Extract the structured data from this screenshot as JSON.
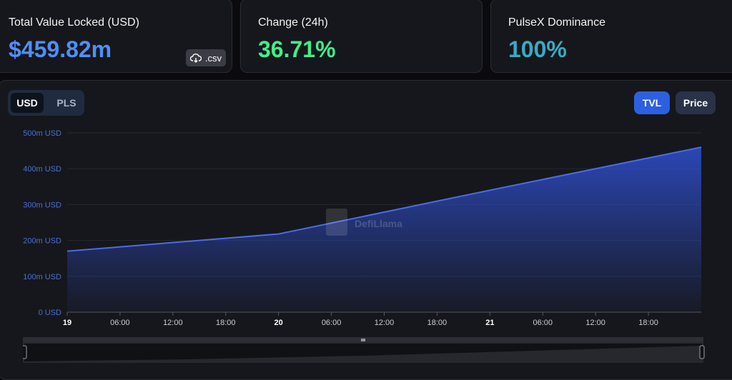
{
  "cards": {
    "tvl": {
      "label": "Total Value Locked (USD)",
      "value": "$459.82m",
      "value_color": "#4f8ff6",
      "csv_label": ".csv",
      "csv_icon": "cloud-download-icon"
    },
    "change": {
      "label": "Change (24h)",
      "value": "36.71%",
      "value_color": "#3ef08a"
    },
    "dominance": {
      "label": "PulseX Dominance",
      "value": "100%",
      "value_color": "#3aaac4"
    }
  },
  "controls": {
    "currency": {
      "options": [
        "USD",
        "PLS"
      ],
      "selected": "USD"
    },
    "views": [
      {
        "label": "TVL",
        "active": true
      },
      {
        "label": "Price",
        "active": false
      }
    ]
  },
  "watermark": "DefiLlama",
  "chart_data": {
    "type": "area",
    "series": [
      {
        "x": [
          0,
          24,
          48,
          72
        ],
        "values": [
          170,
          218,
          340,
          460
        ]
      }
    ],
    "x_ticks": [
      {
        "x": 0,
        "label": "19",
        "bold": true
      },
      {
        "x": 6,
        "label": "06:00"
      },
      {
        "x": 12,
        "label": "12:00"
      },
      {
        "x": 18,
        "label": "18:00"
      },
      {
        "x": 24,
        "label": "20",
        "bold": true
      },
      {
        "x": 30,
        "label": "06:00"
      },
      {
        "x": 36,
        "label": "12:00"
      },
      {
        "x": 42,
        "label": "18:00"
      },
      {
        "x": 48,
        "label": "21",
        "bold": true
      },
      {
        "x": 54,
        "label": "06:00"
      },
      {
        "x": 60,
        "label": "12:00"
      },
      {
        "x": 66,
        "label": "18:00"
      }
    ],
    "y_ticks": [
      {
        "value": 0,
        "label": "0 USD"
      },
      {
        "value": 100,
        "label": "100m USD"
      },
      {
        "value": 200,
        "label": "200m USD"
      },
      {
        "value": 300,
        "label": "300m USD"
      },
      {
        "value": 400,
        "label": "400m USD"
      },
      {
        "value": 500,
        "label": "500m USD"
      }
    ],
    "xlim": [
      0,
      72
    ],
    "ylim": [
      0,
      500
    ],
    "grid": true,
    "line_color": "#4a6de6"
  }
}
